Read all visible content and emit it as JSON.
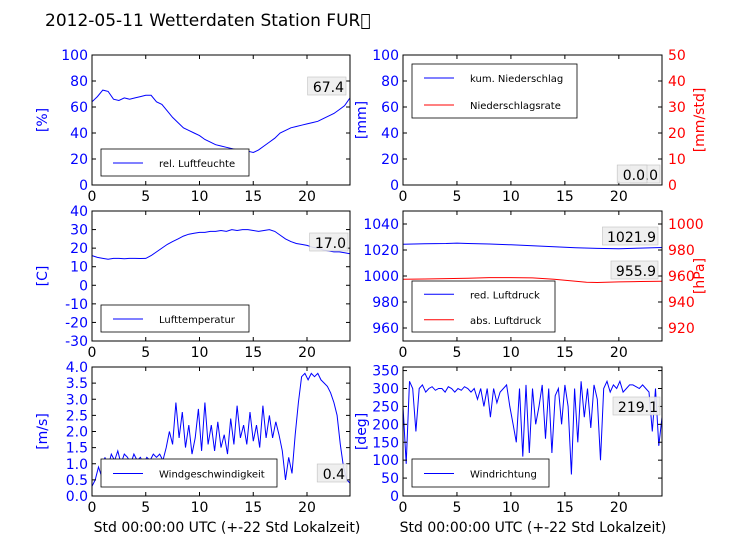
{
  "figure_title": "2012-05-11 Wetterdaten Station FUR\u0000",
  "xlabel_bottom": "Std 00:00:00 UTC (+-22 Std Lokalzeit)",
  "colors": {
    "primary": "#0000ff",
    "secondary": "#ff0000",
    "axis": "#000000"
  },
  "chart_data": [
    {
      "id": "humidity",
      "type": "line",
      "ylabel": "[%]",
      "xlim": [
        0,
        24
      ],
      "ylim": [
        0,
        100
      ],
      "xticks": [
        0,
        5,
        10,
        15,
        20
      ],
      "yticks": [
        0,
        20,
        40,
        60,
        80,
        100
      ],
      "legend_placement": "lower-left",
      "last_value_label": "67.4",
      "series": [
        {
          "name": "rel. Luftfeuchte",
          "color": "#0000ff",
          "x": [
            0,
            0.5,
            1,
            1.5,
            2,
            2.5,
            3,
            3.5,
            4,
            4.5,
            5,
            5.5,
            6,
            6.5,
            7,
            7.5,
            8,
            8.5,
            9,
            9.5,
            10,
            10.5,
            11,
            11.5,
            12,
            12.5,
            13,
            13.5,
            14,
            14.5,
            15,
            15.5,
            16,
            16.5,
            17,
            17.5,
            18,
            18.5,
            19,
            19.5,
            20,
            20.5,
            21,
            21.5,
            22,
            22.5,
            23,
            23.5,
            24
          ],
          "y": [
            64,
            68,
            73,
            72,
            66,
            65,
            67,
            66,
            67,
            68,
            69,
            69,
            64,
            62,
            57,
            52,
            48,
            44,
            42,
            40,
            38,
            35,
            33,
            31,
            30,
            29,
            28,
            27,
            27,
            26,
            25,
            27,
            30,
            33,
            36,
            40,
            42,
            44,
            45,
            46,
            47,
            48,
            49,
            51,
            53,
            55,
            58,
            61,
            67
          ]
        }
      ]
    },
    {
      "id": "rain",
      "type": "line",
      "ylabel": "[mm]",
      "ylabel_right": "[mm/std]",
      "xlim": [
        0,
        24
      ],
      "ylim": [
        0,
        100
      ],
      "ylim_right": [
        0,
        50
      ],
      "xticks": [
        0,
        5,
        10,
        15,
        20
      ],
      "yticks": [
        0,
        20,
        40,
        60,
        80,
        100
      ],
      "yticks_right": [
        0,
        10,
        20,
        30,
        40,
        50
      ],
      "legend_placement": "top-left",
      "last_value_label": "0.0",
      "last_value_label_2": "0.0",
      "series": [
        {
          "name": "kum. Niederschlag",
          "color": "#0000ff",
          "axis": "left",
          "x": [
            0,
            24
          ],
          "y": [
            0,
            0
          ]
        },
        {
          "name": "Niederschlagsrate",
          "color": "#ff0000",
          "axis": "right",
          "x": [
            0,
            24
          ],
          "y": [
            0,
            0
          ]
        }
      ]
    },
    {
      "id": "temperature",
      "type": "line",
      "ylabel": "[C]",
      "xlim": [
        0,
        24
      ],
      "ylim": [
        -30,
        40
      ],
      "xticks": [
        0,
        5,
        10,
        15,
        20
      ],
      "yticks": [
        -30,
        -20,
        -10,
        0,
        10,
        20,
        30,
        40
      ],
      "legend_placement": "lower-left",
      "last_value_label": "17.0",
      "series": [
        {
          "name": "Lufttemperatur",
          "color": "#0000ff",
          "x": [
            0,
            0.5,
            1,
            1.5,
            2,
            2.5,
            3,
            3.5,
            4,
            4.5,
            5,
            5.5,
            6,
            6.5,
            7,
            7.5,
            8,
            8.5,
            9,
            9.5,
            10,
            10.5,
            11,
            11.5,
            12,
            12.5,
            13,
            13.5,
            14,
            14.5,
            15,
            15.5,
            16,
            16.5,
            17,
            17.5,
            18,
            18.5,
            19,
            19.5,
            20,
            20.5,
            21,
            21.5,
            22,
            22.5,
            23,
            23.5,
            24
          ],
          "y": [
            16,
            15,
            14.5,
            14,
            14.5,
            14.5,
            14.3,
            14.5,
            14.5,
            14.4,
            14.5,
            16,
            18,
            20,
            22,
            23.5,
            25,
            26.5,
            27.5,
            28,
            28.5,
            28.5,
            29,
            29,
            29.5,
            29,
            30,
            29.5,
            30,
            30,
            29.5,
            29,
            29.5,
            30,
            29,
            27,
            25,
            23.5,
            22.5,
            22,
            21.5,
            20.5,
            20,
            19,
            18.5,
            18,
            18,
            17.5,
            17
          ]
        }
      ]
    },
    {
      "id": "pressure",
      "type": "line",
      "ylabel_right": "[hPa]",
      "xlim": [
        0,
        24
      ],
      "ylim": [
        950,
        1050
      ],
      "ylim_right": [
        910,
        1010
      ],
      "xticks": [
        0,
        5,
        10,
        15,
        20
      ],
      "yticks": [
        960,
        980,
        1000,
        1020,
        1040
      ],
      "yticks_right": [
        920,
        940,
        960,
        980,
        1000
      ],
      "legend_placement": "lower-left",
      "last_value_label": "1021.9",
      "last_value_label_2": "955.9",
      "series": [
        {
          "name": "red. Luftdruck",
          "color": "#0000ff",
          "axis": "left",
          "x": [
            0,
            2,
            4,
            5,
            6,
            8,
            10,
            12,
            14,
            16,
            18,
            20,
            22,
            24
          ],
          "y": [
            1024.5,
            1024.8,
            1025,
            1025.3,
            1025,
            1024.6,
            1024,
            1023.2,
            1022.5,
            1021.8,
            1021.2,
            1021,
            1021.5,
            1021.9
          ]
        },
        {
          "name": "abs. Luftdruck",
          "color": "#ff0000",
          "axis": "right",
          "x": [
            0,
            2,
            4,
            6,
            8,
            10,
            12,
            14,
            16,
            17,
            18,
            20,
            22,
            24
          ],
          "y": [
            957.5,
            957.7,
            958,
            958.3,
            958.8,
            958.8,
            958.5,
            957.5,
            956,
            955.2,
            955,
            955.5,
            955.8,
            955.9
          ]
        }
      ]
    },
    {
      "id": "wind_speed",
      "type": "line",
      "ylabel": "[m/s]",
      "xlim": [
        0,
        24
      ],
      "ylim": [
        0,
        4
      ],
      "xticks": [
        0,
        5,
        10,
        15,
        20
      ],
      "yticks": [
        0.0,
        0.5,
        1.0,
        1.5,
        2.0,
        2.5,
        3.0,
        3.5,
        4.0
      ],
      "legend_placement": "lower-left",
      "last_value_label": "0.4",
      "series": [
        {
          "name": "Windgeschwindigkeit",
          "color": "#0000ff",
          "x": [
            0,
            0.3,
            0.6,
            0.9,
            1.2,
            1.5,
            1.8,
            2.1,
            2.4,
            2.7,
            3,
            3.3,
            3.6,
            3.9,
            4.2,
            4.5,
            4.8,
            5.1,
            5.4,
            5.7,
            6,
            6.3,
            6.6,
            6.9,
            7.2,
            7.5,
            7.8,
            8.1,
            8.4,
            8.7,
            9,
            9.3,
            9.6,
            9.9,
            10.2,
            10.5,
            10.8,
            11.1,
            11.4,
            11.7,
            12,
            12.3,
            12.6,
            12.9,
            13.2,
            13.5,
            13.8,
            14.1,
            14.4,
            14.7,
            15,
            15.3,
            15.6,
            15.9,
            16.2,
            16.5,
            16.8,
            17.1,
            17.4,
            17.7,
            18,
            18.3,
            18.6,
            18.9,
            19.2,
            19.5,
            19.8,
            20.1,
            20.4,
            20.7,
            21,
            21.3,
            21.6,
            21.9,
            22.2,
            22.5,
            22.8,
            23.1,
            23.4,
            23.7,
            24
          ],
          "y": [
            0.3,
            0.5,
            0.9,
            0.6,
            1.2,
            0.9,
            1.3,
            1.1,
            1.4,
            1.0,
            1.3,
            1.2,
            1.0,
            1.3,
            1.1,
            1.2,
            1.0,
            1.2,
            1.1,
            1.3,
            1.2,
            1.3,
            1.1,
            1.5,
            2.0,
            1.6,
            2.9,
            1.8,
            2.6,
            1.5,
            2.2,
            1.3,
            1.8,
            2.7,
            1.4,
            2.9,
            1.6,
            2.2,
            1.4,
            2.3,
            1.5,
            1.9,
            1.3,
            2.4,
            1.6,
            2.8,
            1.8,
            2.2,
            1.6,
            2.6,
            1.7,
            2.2,
            1.5,
            2.8,
            1.8,
            2.5,
            1.8,
            2.3,
            1.9,
            1.4,
            0.5,
            1.2,
            0.7,
            1.9,
            2.9,
            3.7,
            3.8,
            3.6,
            3.8,
            3.7,
            3.8,
            3.6,
            3.5,
            3.4,
            3.2,
            2.9,
            2.5,
            1.6,
            0.9,
            0.5,
            0.4
          ]
        }
      ]
    },
    {
      "id": "wind_direction",
      "type": "line",
      "ylabel": "[deg]",
      "xlim": [
        0,
        24
      ],
      "ylim": [
        0,
        360
      ],
      "xticks": [
        0,
        5,
        10,
        15,
        20
      ],
      "yticks": [
        0,
        50,
        100,
        150,
        200,
        250,
        300,
        350
      ],
      "legend_placement": "lower-left",
      "last_value_label": "219.1",
      "series": [
        {
          "name": "Windrichtung",
          "color": "#0000ff",
          "x": [
            0,
            0.3,
            0.6,
            0.9,
            1.2,
            1.5,
            1.8,
            2.1,
            2.4,
            2.7,
            3,
            3.3,
            3.6,
            3.9,
            4.2,
            4.5,
            4.8,
            5.1,
            5.4,
            5.7,
            6,
            6.3,
            6.6,
            6.9,
            7.2,
            7.5,
            7.8,
            8.1,
            8.4,
            8.7,
            9,
            9.3,
            9.6,
            9.9,
            10.2,
            10.5,
            10.8,
            11.1,
            11.4,
            11.7,
            12,
            12.3,
            12.6,
            12.9,
            13.2,
            13.5,
            13.8,
            14.1,
            14.4,
            14.7,
            15,
            15.3,
            15.6,
            15.9,
            16.2,
            16.5,
            16.8,
            17.1,
            17.4,
            17.7,
            18,
            18.3,
            18.6,
            18.9,
            19.2,
            19.5,
            19.8,
            20.1,
            20.4,
            20.7,
            21,
            21.3,
            21.6,
            21.9,
            22.2,
            22.5,
            22.8,
            23.1,
            23.4,
            23.7,
            24
          ],
          "y": [
            250,
            90,
            320,
            300,
            180,
            300,
            310,
            290,
            300,
            305,
            295,
            300,
            300,
            290,
            305,
            300,
            290,
            300,
            295,
            305,
            300,
            290,
            300,
            270,
            300,
            250,
            300,
            220,
            300,
            260,
            290,
            300,
            310,
            250,
            200,
            150,
            300,
            110,
            310,
            120,
            300,
            200,
            250,
            310,
            160,
            300,
            120,
            280,
            300,
            200,
            310,
            250,
            60,
            300,
            150,
            320,
            220,
            300,
            190,
            310,
            270,
            100,
            300,
            320,
            290,
            310,
            300,
            320,
            290,
            300,
            310,
            310,
            305,
            300,
            310,
            300,
            290,
            180,
            300,
            140,
            220
          ]
        }
      ]
    }
  ]
}
